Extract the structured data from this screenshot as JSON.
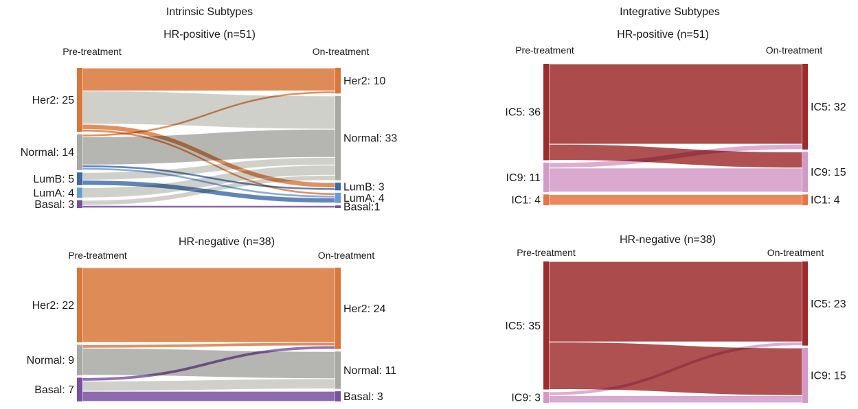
{
  "panels": [
    {
      "heading": "Intrinsic Subtypes",
      "subtitle": "HR-positive (n=51)",
      "left_header": "Pre-treatment",
      "right_header": "On-treatment",
      "left_nodes": [
        {
          "name": "Her2",
          "count": 25,
          "label": "Her2: 25",
          "color": "#d9773a"
        },
        {
          "name": "Normal",
          "count": 14,
          "label": "Normal: 14",
          "color": "#a8a8a4"
        },
        {
          "name": "LumB",
          "count": 5,
          "label": "LumB: 5",
          "color": "#3e6aa8"
        },
        {
          "name": "LumA",
          "count": 4,
          "label": "LumA: 4",
          "color": "#6b9ad8"
        },
        {
          "name": "Basal",
          "count": 3,
          "label": "Basal: 3",
          "color": "#7a4fa2"
        }
      ],
      "right_nodes": [
        {
          "name": "Her2",
          "count": 10,
          "label": "Her2: 10",
          "color": "#d9773a"
        },
        {
          "name": "Normal",
          "count": 33,
          "label": "Normal: 33",
          "color": "#a8a8a4"
        },
        {
          "name": "LumB",
          "count": 3,
          "label": "LumB: 3",
          "color": "#3e6aa8"
        },
        {
          "name": "LumA",
          "count": 4,
          "label": "LumA: 4",
          "color": "#6b9ad8"
        },
        {
          "name": "Basal",
          "count": 1,
          "label": "Basal:1",
          "color": "#7a4fa2"
        }
      ]
    },
    {
      "subtitle": "HR-negative (n=38)",
      "left_header": "Pre-treatment",
      "right_header": "On-treatment",
      "left_nodes": [
        {
          "name": "Her2",
          "count": 22,
          "label": "Her2: 22",
          "color": "#d9773a"
        },
        {
          "name": "Normal",
          "count": 9,
          "label": "Normal: 9",
          "color": "#a8a8a4"
        },
        {
          "name": "Basal",
          "count": 7,
          "label": "Basal: 7",
          "color": "#7a4fa2"
        }
      ],
      "right_nodes": [
        {
          "name": "Her2",
          "count": 24,
          "label": "Her2: 24",
          "color": "#d9773a"
        },
        {
          "name": "Normal",
          "count": 11,
          "label": "Normal: 11",
          "color": "#a8a8a4"
        },
        {
          "name": "Basal",
          "count": 3,
          "label": "Basal: 3",
          "color": "#7a4fa2"
        }
      ]
    },
    {
      "heading": "Integrative Subtypes",
      "subtitle": "HR-positive (n=51)",
      "left_header": "Pre-treatment",
      "right_header": "On-treatment",
      "left_nodes": [
        {
          "name": "IC5",
          "count": 36,
          "label": "IC5: 36",
          "color": "#9e2b2b"
        },
        {
          "name": "IC9",
          "count": 11,
          "label": "IC9: 11",
          "color": "#d49ac7"
        },
        {
          "name": "IC1",
          "count": 4,
          "label": "IC1: 4",
          "color": "#e8743f"
        }
      ],
      "right_nodes": [
        {
          "name": "IC5",
          "count": 32,
          "label": "IC5: 32",
          "color": "#9e2b2b"
        },
        {
          "name": "IC9",
          "count": 15,
          "label": "IC9: 15",
          "color": "#d49ac7"
        },
        {
          "name": "IC1",
          "count": 4,
          "label": "IC1: 4",
          "color": "#e8743f"
        }
      ]
    },
    {
      "subtitle": "HR-negative (n=38)",
      "left_header": "Pre-treatment",
      "right_header": "On-treatment",
      "left_nodes": [
        {
          "name": "IC5",
          "count": 35,
          "label": "IC5: 35",
          "color": "#9e2b2b"
        },
        {
          "name": "IC9",
          "count": 3,
          "label": "IC9: 3",
          "color": "#d49ac7"
        }
      ],
      "right_nodes": [
        {
          "name": "IC5",
          "count": 23,
          "label": "IC5: 23",
          "color": "#9e2b2b"
        },
        {
          "name": "IC9",
          "count": 15,
          "label": "IC9: 15",
          "color": "#d49ac7"
        }
      ]
    }
  ],
  "chart_data": [
    {
      "type": "sankey",
      "title": "Intrinsic Subtypes",
      "subtitle": "HR-positive (n=51)",
      "left_label": "Pre-treatment",
      "right_label": "On-treatment",
      "flows": [
        {
          "from": "Her2",
          "to": "Her2",
          "value": 9
        },
        {
          "from": "Her2",
          "to": "Normal",
          "value": 13
        },
        {
          "from": "Her2",
          "to": "LumB",
          "value": 2
        },
        {
          "from": "Her2",
          "to": "LumA",
          "value": 1
        },
        {
          "from": "Normal",
          "to": "Her2",
          "value": 1
        },
        {
          "from": "Normal",
          "to": "Normal",
          "value": 11
        },
        {
          "from": "Normal",
          "to": "LumB",
          "value": 1
        },
        {
          "from": "Normal",
          "to": "LumA",
          "value": 1
        },
        {
          "from": "LumB",
          "to": "Normal",
          "value": 3
        },
        {
          "from": "LumB",
          "to": "LumA",
          "value": 2
        },
        {
          "from": "LumA",
          "to": "Normal",
          "value": 4
        },
        {
          "from": "Basal",
          "to": "Normal",
          "value": 2
        },
        {
          "from": "Basal",
          "to": "Basal",
          "value": 1
        }
      ]
    },
    {
      "type": "sankey",
      "subtitle": "HR-negative (n=38)",
      "left_label": "Pre-treatment",
      "right_label": "On-treatment",
      "flows": [
        {
          "from": "Her2",
          "to": "Her2",
          "value": 22
        },
        {
          "from": "Normal",
          "to": "Her2",
          "value": 1
        },
        {
          "from": "Normal",
          "to": "Normal",
          "value": 8
        },
        {
          "from": "Basal",
          "to": "Her2",
          "value": 1
        },
        {
          "from": "Basal",
          "to": "Normal",
          "value": 3
        },
        {
          "from": "Basal",
          "to": "Basal",
          "value": 3
        }
      ]
    },
    {
      "type": "sankey",
      "title": "Integrative Subtypes",
      "subtitle": "HR-positive (n=51)",
      "left_label": "Pre-treatment",
      "right_label": "On-treatment",
      "flows": [
        {
          "from": "IC5",
          "to": "IC5",
          "value": 30
        },
        {
          "from": "IC5",
          "to": "IC9",
          "value": 6
        },
        {
          "from": "IC9",
          "to": "IC5",
          "value": 2
        },
        {
          "from": "IC9",
          "to": "IC9",
          "value": 9
        },
        {
          "from": "IC1",
          "to": "IC1",
          "value": 4
        }
      ]
    },
    {
      "type": "sankey",
      "subtitle": "HR-negative (n=38)",
      "left_label": "Pre-treatment",
      "right_label": "On-treatment",
      "flows": [
        {
          "from": "IC5",
          "to": "IC5",
          "value": 22
        },
        {
          "from": "IC5",
          "to": "IC9",
          "value": 13
        },
        {
          "from": "IC9",
          "to": "IC5",
          "value": 1
        },
        {
          "from": "IC9",
          "to": "IC9",
          "value": 2
        }
      ]
    }
  ]
}
